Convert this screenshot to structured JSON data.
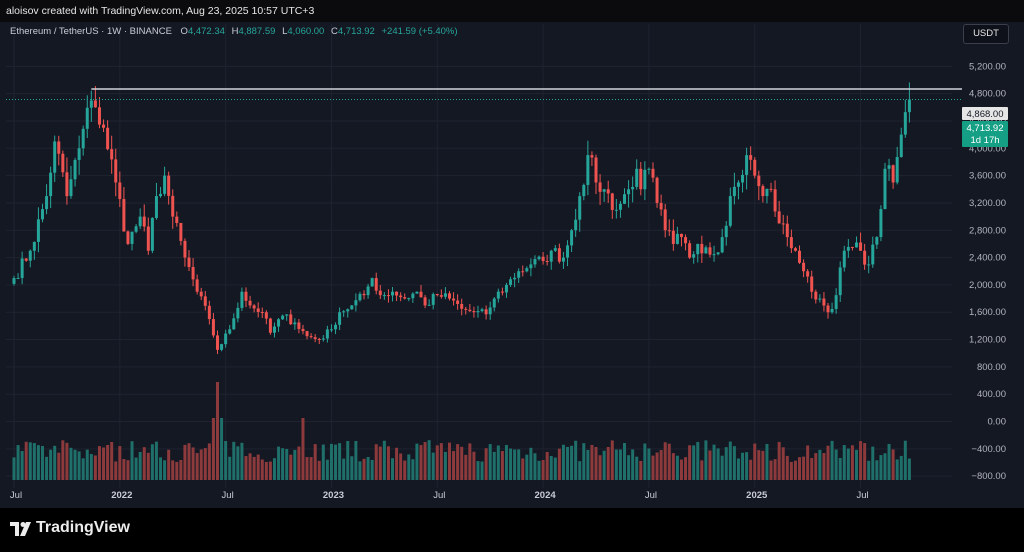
{
  "header": {
    "caption": "aloisov created with TradingView.com, Aug 23, 2025 10:57 UTC+3"
  },
  "legend": {
    "symbol": "Ethereum / TetherUS · 1W · BINANCE",
    "o_label": "O",
    "o_value": "4,472.34",
    "h_label": "H",
    "h_value": "4,887.59",
    "l_label": "L",
    "l_value": "4,060.00",
    "c_label": "C",
    "c_value": "4,713.92",
    "change": "+241.59 (+5.40%)"
  },
  "currency_button": "USDT",
  "price_tags": {
    "high_line": "4,868.00",
    "last_price": "4,713.92",
    "countdown": "1d 17h"
  },
  "footer": {
    "brand": "TradingView"
  },
  "colors": {
    "up": "#26a69a",
    "down": "#ef5350",
    "background": "#141823",
    "grid": "#1f2330"
  },
  "chart_data": {
    "type": "candlestick",
    "interval": "1W",
    "y_axis_ticks": [
      "5,200.00",
      "4,800.00",
      "4,400.00",
      "4,000.00",
      "3,600.00",
      "3,200.00",
      "2,800.00",
      "2,400.00",
      "2,000.00",
      "1,600.00",
      "1,200.00",
      "800.00",
      "400.00",
      "0.00",
      "−400.00",
      "−800.00"
    ],
    "y_ticks_values": [
      5200,
      4800,
      4400,
      4000,
      3600,
      3200,
      2800,
      2400,
      2000,
      1600,
      1200,
      800,
      400,
      0,
      -400,
      -800
    ],
    "ylim": [
      -900,
      5600
    ],
    "x_axis_labels": [
      "Jul",
      "2022",
      "Jul",
      "2023",
      "Jul",
      "2024",
      "Jul",
      "2025",
      "Jul"
    ],
    "x_axis_label_weeks": [
      0,
      26,
      52,
      78,
      104,
      130,
      156,
      182,
      208
    ],
    "horizontal_line": 4868,
    "grid": true,
    "anchors": [
      [
        0,
        2100
      ],
      [
        4,
        2500
      ],
      [
        8,
        3300
      ],
      [
        10,
        4100
      ],
      [
        13,
        3300
      ],
      [
        16,
        4000
      ],
      [
        19,
        4700
      ],
      [
        20,
        4600
      ],
      [
        22,
        4300
      ],
      [
        25,
        3500
      ],
      [
        28,
        2600
      ],
      [
        31,
        3000
      ],
      [
        33,
        2500
      ],
      [
        35,
        3300
      ],
      [
        37,
        3600
      ],
      [
        39,
        3000
      ],
      [
        42,
        2400
      ],
      [
        45,
        1900
      ],
      [
        48,
        1500
      ],
      [
        50,
        1050
      ],
      [
        53,
        1350
      ],
      [
        56,
        1900
      ],
      [
        58,
        1700
      ],
      [
        61,
        1600
      ],
      [
        63,
        1300
      ],
      [
        66,
        1550
      ],
      [
        69,
        1450
      ],
      [
        72,
        1250
      ],
      [
        75,
        1200
      ],
      [
        78,
        1350
      ],
      [
        80,
        1600
      ],
      [
        83,
        1700
      ],
      [
        86,
        1850
      ],
      [
        88,
        2100
      ],
      [
        90,
        1850
      ],
      [
        93,
        1900
      ],
      [
        96,
        1800
      ],
      [
        99,
        1900
      ],
      [
        101,
        1700
      ],
      [
        104,
        1850
      ],
      [
        107,
        1800
      ],
      [
        110,
        1650
      ],
      [
        113,
        1600
      ],
      [
        116,
        1570
      ],
      [
        118,
        1800
      ],
      [
        121,
        2000
      ],
      [
        124,
        2200
      ],
      [
        127,
        2300
      ],
      [
        130,
        2350
      ],
      [
        132,
        2500
      ],
      [
        135,
        2400
      ],
      [
        137,
        2800
      ],
      [
        139,
        3300
      ],
      [
        141,
        3900
      ],
      [
        143,
        3500
      ],
      [
        145,
        3400
      ],
      [
        148,
        3100
      ],
      [
        151,
        3400
      ],
      [
        153,
        3700
      ],
      [
        154,
        3400
      ],
      [
        156,
        3700
      ],
      [
        158,
        3200
      ],
      [
        160,
        2800
      ],
      [
        162,
        2600
      ],
      [
        164,
        2700
      ],
      [
        166,
        2400
      ],
      [
        168,
        2600
      ],
      [
        170,
        2550
      ],
      [
        172,
        2450
      ],
      [
        174,
        2700
      ],
      [
        176,
        3300
      ],
      [
        178,
        3500
      ],
      [
        180,
        3900
      ],
      [
        182,
        3600
      ],
      [
        184,
        3300
      ],
      [
        186,
        3400
      ],
      [
        188,
        2900
      ],
      [
        190,
        2700
      ],
      [
        192,
        2500
      ],
      [
        194,
        2200
      ],
      [
        196,
        1900
      ],
      [
        198,
        1800
      ],
      [
        200,
        1600
      ],
      [
        202,
        1850
      ],
      [
        204,
        2500
      ],
      [
        206,
        2550
      ],
      [
        208,
        2500
      ],
      [
        210,
        2300
      ],
      [
        212,
        2700
      ],
      [
        214,
        3700
      ],
      [
        216,
        3500
      ],
      [
        218,
        4200
      ],
      [
        220,
        4714
      ]
    ]
  }
}
